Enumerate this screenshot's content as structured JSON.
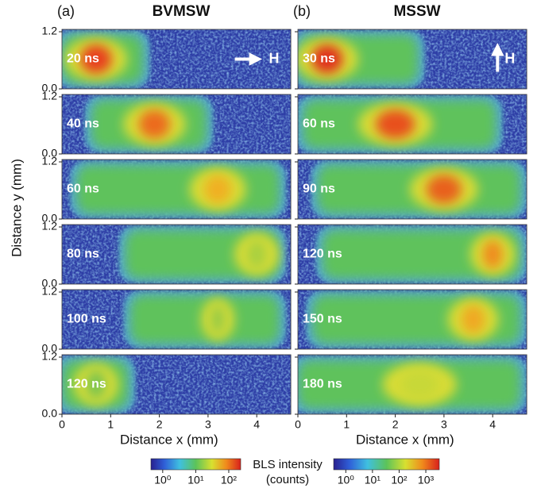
{
  "chart_data": {
    "type": "heatmap",
    "xlabel": "Distance x (mm)",
    "ylabel": "Distance y (mm)",
    "xlim": [
      0,
      4.7
    ],
    "xticks": [
      0,
      1,
      2,
      3,
      4
    ],
    "ylim": [
      0,
      1.25
    ],
    "yticks": [
      {
        "value": 0,
        "label": "0.0"
      },
      1.2
    ],
    "panels": [
      {
        "label": "(a)",
        "title": "BVMSW",
        "field_label": "H",
        "frames": [
          "20 ns",
          "40 ns",
          "60 ns",
          "80 ns",
          "100 ns",
          "120 ns"
        ]
      },
      {
        "label": "(b)",
        "title": "MSSW",
        "field_label": "H",
        "frames": [
          "30 ns",
          "60 ns",
          "90 ns",
          "120 ns",
          "150 ns",
          "180 ns"
        ]
      }
    ],
    "colorbar_label": [
      "BLS intensity",
      "(counts)"
    ],
    "colorbars": [
      {
        "log": true,
        "clim": [
          0.44,
          230
        ],
        "ticks": [
          {
            "value": 1,
            "label": "10⁰"
          },
          {
            "value": 10,
            "label": "10¹"
          },
          {
            "value": 100,
            "label": "10²"
          }
        ]
      },
      {
        "log": true,
        "clim": [
          0.35,
          3200
        ],
        "ticks": [
          {
            "value": 1,
            "label": "10⁰"
          },
          {
            "value": 10,
            "label": "10¹"
          },
          {
            "value": 100,
            "label": "10²"
          },
          {
            "value": 1000,
            "label": "10³"
          }
        ]
      }
    ]
  }
}
